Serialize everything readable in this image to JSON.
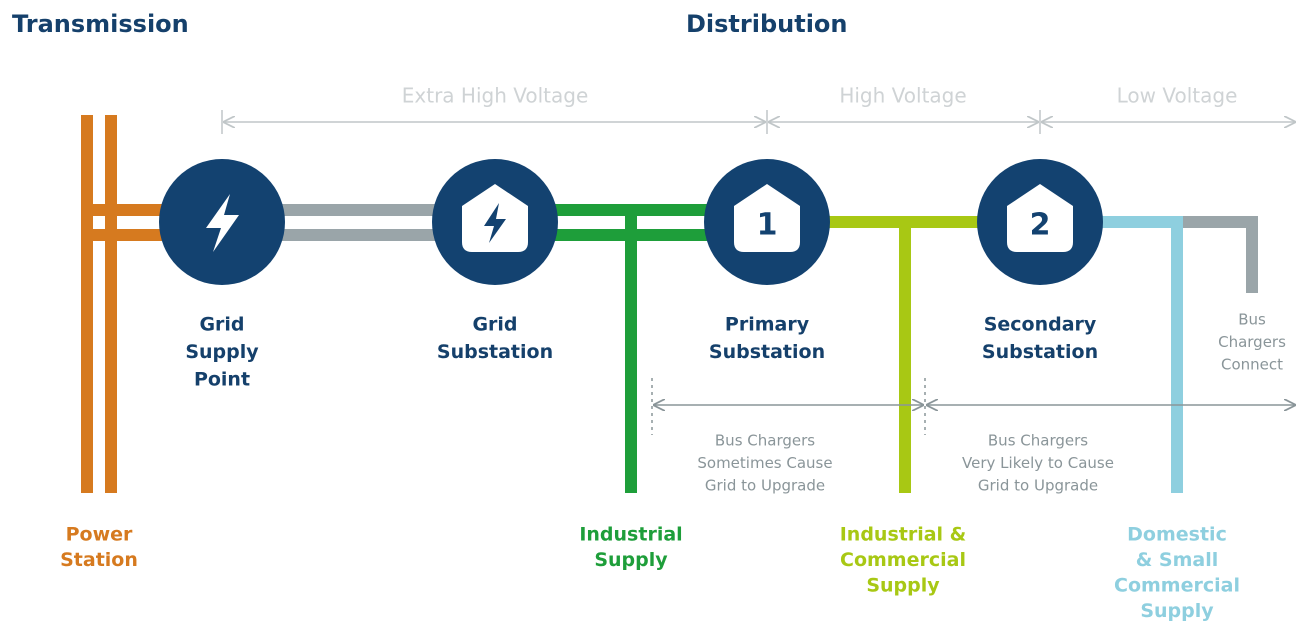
{
  "headers": [
    "Transmission",
    "Distribution"
  ],
  "voltage_bands": [
    "Extra High Voltage",
    "High Voltage",
    "Low Voltage"
  ],
  "nodes": [
    {
      "label": [
        "Grid",
        "Supply",
        "Point"
      ]
    },
    {
      "label": [
        "Grid",
        "Substation"
      ]
    },
    {
      "icon_text": "1",
      "label": [
        "Primary",
        "Substation"
      ]
    },
    {
      "icon_text": "2",
      "label": [
        "Secondary",
        "Substation"
      ]
    }
  ],
  "supplies": [
    {
      "label": [
        "Power",
        "Station"
      ]
    },
    {
      "label": [
        "Industrial",
        "Supply"
      ]
    },
    {
      "label": [
        "Industrial &",
        "Commercial",
        "Supply"
      ]
    },
    {
      "label": [
        "Domestic",
        "& Small",
        "Commercial",
        "Supply"
      ]
    }
  ],
  "annotations": [
    {
      "label": [
        "Bus",
        "Chargers",
        "Connect"
      ]
    },
    {
      "label": [
        "Bus Chargers",
        "Sometimes Cause",
        "Grid to Upgrade"
      ]
    },
    {
      "label": [
        "Bus Chargers",
        "Very Likely to Cause",
        "Grid to Upgrade"
      ]
    }
  ]
}
